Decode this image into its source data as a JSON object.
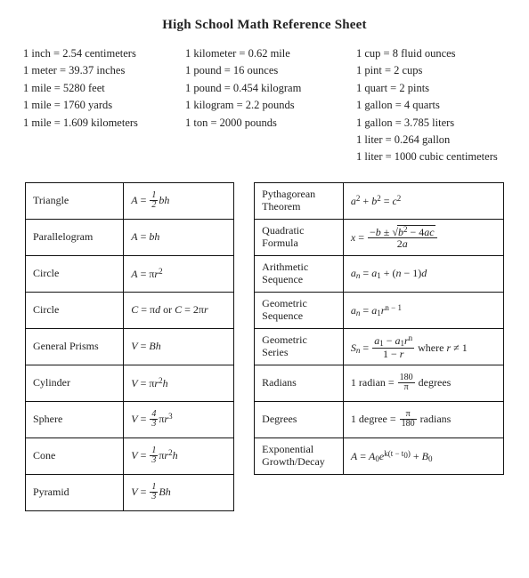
{
  "title": "High School Math Reference Sheet",
  "colors": {
    "bg": "#ffffff",
    "text": "#222222",
    "border": "#111111"
  },
  "typography": {
    "family": "serif",
    "title_size_pt": 13,
    "body_size_pt": 10,
    "table_size_pt": 10
  },
  "conversions": {
    "col1": [
      "1 inch = 2.54 centimeters",
      "1 meter = 39.37 inches",
      "1 mile = 5280 feet",
      "1 mile = 1760 yards",
      "1 mile = 1.609 kilometers"
    ],
    "col2": [
      "1 kilometer = 0.62 mile",
      "1 pound = 16 ounces",
      "1 pound = 0.454 kilogram",
      "1 kilogram = 2.2 pounds",
      "1 ton = 2000 pounds"
    ],
    "col3": [
      "1 cup = 8 fluid ounces",
      "1 pint = 2 cups",
      "1 quart = 2 pints",
      "1 gallon = 4 quarts",
      "1 gallon = 3.785 liters",
      "1 liter = 0.264 gallon",
      "1 liter = 1000 cubic centimeters"
    ]
  },
  "formulas_left": [
    {
      "name": "Triangle",
      "formula_text": "A = ½ bh"
    },
    {
      "name": "Parallelogram",
      "formula_text": "A = bh"
    },
    {
      "name": "Circle",
      "formula_text": "A = πr²"
    },
    {
      "name": "Circle",
      "formula_text": "C = πd or C = 2πr"
    },
    {
      "name": "General Prisms",
      "formula_text": "V = Bh"
    },
    {
      "name": "Cylinder",
      "formula_text": "V = πr²h"
    },
    {
      "name": "Sphere",
      "formula_text": "V = 4/3 πr³"
    },
    {
      "name": "Cone",
      "formula_text": "V = 1/3 πr²h"
    },
    {
      "name": "Pyramid",
      "formula_text": "V = 1/3 Bh"
    }
  ],
  "formulas_right": [
    {
      "name": "Pythagorean Theorem",
      "formula_text": "a² + b² = c²"
    },
    {
      "name": "Quadratic Formula",
      "formula_text": "x = (−b ± √(b² − 4ac)) / 2a"
    },
    {
      "name": "Arithmetic Sequence",
      "formula_text": "aₙ = a₁ + (n − 1)d"
    },
    {
      "name": "Geometric Sequence",
      "formula_text": "aₙ = a₁ rⁿ⁻¹"
    },
    {
      "name": "Geometric Series",
      "formula_text": "Sₙ = (a₁ − a₁rⁿ) / (1 − r) where r ≠ 1"
    },
    {
      "name": "Radians",
      "formula_text": "1 radian = 180/π degrees"
    },
    {
      "name": "Degrees",
      "formula_text": "1 degree = π/180 radians"
    },
    {
      "name": "Exponential Growth/Decay",
      "formula_text": "A = A₀ e^{k(t − t₀)} + B₀"
    }
  ],
  "tokens": {
    "eq": " = ",
    "or": " or ",
    "where": " where ",
    "A": "A",
    "C": "C",
    "V": "V",
    "B": "B",
    "b": "b",
    "h": "h",
    "d": "d",
    "r": "r",
    "a": "a",
    "c": "c",
    "x": "x",
    "n": "n",
    "S": "S",
    "e": "e",
    "k": "k",
    "t": "t",
    "pi": "π",
    "pm": "±",
    "minus": " − ",
    "plus": " + ",
    "neq": "≠",
    "one": "1",
    "two": "2",
    "three": "3",
    "four": "4",
    "radian_lhs": "1 radian",
    "degree_lhs": "1 degree",
    "degrees_word": " degrees",
    "radians_word": " radians",
    "n180": "180",
    "zero": "0"
  }
}
